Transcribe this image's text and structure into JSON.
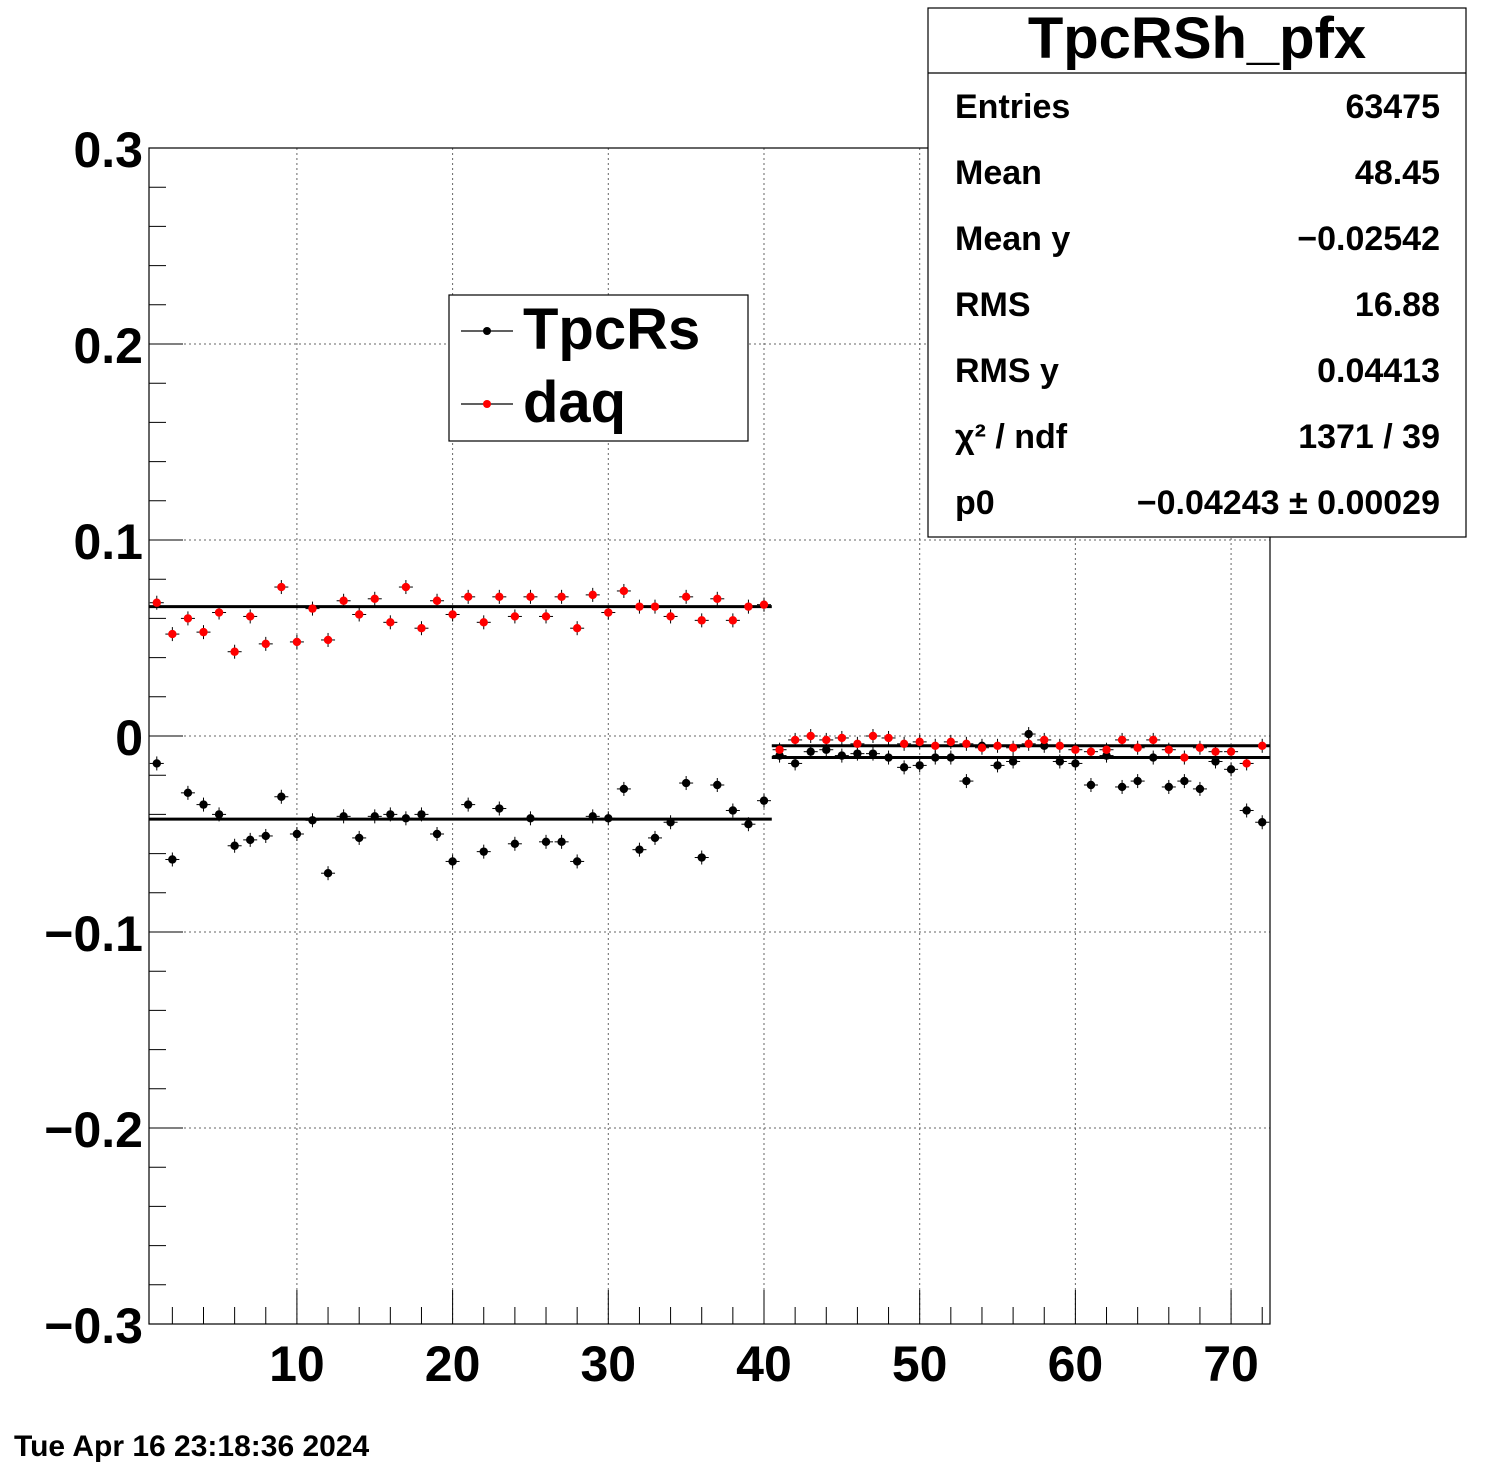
{
  "chart_data": {
    "type": "scatter",
    "title": "TpcRSh_pfx",
    "xlabel": "",
    "ylabel": "",
    "xlim": [
      0.5,
      72.5
    ],
    "ylim": [
      -0.3,
      0.3
    ],
    "grid": true,
    "x_ticks": [
      "10",
      "20",
      "30",
      "40",
      "50",
      "60",
      "70"
    ],
    "y_ticks": [
      "0.3",
      "0.2",
      "0.1",
      "0",
      "−0.1",
      "−0.2",
      "−0.3"
    ],
    "legend": {
      "placement": "top-center",
      "entries": [
        "TpcRs",
        "daq"
      ]
    },
    "series": [
      {
        "name": "TpcRs",
        "color": "#000000",
        "x": [
          1,
          2,
          3,
          4,
          5,
          6,
          7,
          8,
          9,
          10,
          11,
          12,
          13,
          14,
          15,
          16,
          17,
          18,
          19,
          20,
          21,
          22,
          23,
          24,
          25,
          26,
          27,
          28,
          29,
          30,
          31,
          32,
          33,
          34,
          35,
          36,
          37,
          38,
          39,
          40,
          41,
          42,
          43,
          44,
          45,
          46,
          47,
          48,
          49,
          50,
          51,
          52,
          53,
          54,
          55,
          56,
          57,
          58,
          59,
          60,
          61,
          62,
          63,
          64,
          65,
          66,
          67,
          68,
          69,
          70,
          71,
          72
        ],
        "y": [
          -0.014,
          -0.063,
          -0.029,
          -0.035,
          -0.04,
          -0.056,
          -0.053,
          -0.051,
          -0.031,
          -0.05,
          -0.043,
          -0.07,
          -0.041,
          -0.052,
          -0.041,
          -0.04,
          -0.042,
          -0.04,
          -0.05,
          -0.064,
          -0.035,
          -0.059,
          -0.037,
          -0.055,
          -0.042,
          -0.054,
          -0.054,
          -0.064,
          -0.041,
          -0.042,
          -0.027,
          -0.058,
          -0.052,
          -0.044,
          -0.024,
          -0.062,
          -0.025,
          -0.038,
          -0.045,
          -0.033,
          -0.01,
          -0.014,
          -0.008,
          -0.007,
          -0.01,
          -0.009,
          -0.009,
          -0.011,
          -0.016,
          -0.015,
          -0.011,
          -0.011,
          -0.023,
          -0.005,
          -0.015,
          -0.013,
          0.001,
          -0.005,
          -0.013,
          -0.014,
          -0.025,
          -0.01,
          -0.026,
          -0.023,
          -0.011,
          -0.026,
          -0.023,
          -0.027,
          -0.013,
          -0.017,
          -0.038,
          -0.044
        ],
        "fits": [
          {
            "x_range": [
              0.5,
              40.5
            ],
            "p0": -0.04243
          },
          {
            "x_range": [
              40.5,
              72.5
            ],
            "p0": -0.011
          }
        ]
      },
      {
        "name": "daq",
        "color": "#ff0000",
        "x": [
          1,
          2,
          3,
          4,
          5,
          6,
          7,
          8,
          9,
          10,
          11,
          12,
          13,
          14,
          15,
          16,
          17,
          18,
          19,
          20,
          21,
          22,
          23,
          24,
          25,
          26,
          27,
          28,
          29,
          30,
          31,
          32,
          33,
          34,
          35,
          36,
          37,
          38,
          39,
          40,
          41,
          42,
          43,
          44,
          45,
          46,
          47,
          48,
          49,
          50,
          51,
          52,
          53,
          54,
          55,
          56,
          57,
          58,
          59,
          60,
          61,
          62,
          63,
          64,
          65,
          66,
          67,
          68,
          69,
          70,
          71,
          72
        ],
        "y": [
          0.068,
          0.052,
          0.06,
          0.053,
          0.063,
          0.043,
          0.061,
          0.047,
          0.076,
          0.048,
          0.065,
          0.049,
          0.069,
          0.062,
          0.07,
          0.058,
          0.076,
          0.055,
          0.069,
          0.062,
          0.071,
          0.058,
          0.071,
          0.061,
          0.071,
          0.061,
          0.071,
          0.055,
          0.072,
          0.063,
          0.074,
          0.066,
          0.066,
          0.061,
          0.071,
          0.059,
          0.07,
          0.059,
          0.066,
          0.067,
          -0.007,
          -0.002,
          0.0,
          -0.002,
          -0.001,
          -0.004,
          0.0,
          -0.001,
          -0.004,
          -0.003,
          -0.005,
          -0.003,
          -0.004,
          -0.006,
          -0.005,
          -0.006,
          -0.004,
          -0.002,
          -0.005,
          -0.007,
          -0.008,
          -0.007,
          -0.002,
          -0.006,
          -0.002,
          -0.007,
          -0.011,
          -0.006,
          -0.008,
          -0.008,
          -0.014,
          -0.005
        ],
        "fits": [
          {
            "x_range": [
              0.5,
              40.5
            ],
            "p0": 0.066
          },
          {
            "x_range": [
              40.5,
              72.5
            ],
            "p0": -0.005
          }
        ]
      }
    ]
  },
  "stats": {
    "title": "TpcRSh_pfx",
    "rows": [
      {
        "label": "Entries",
        "value": "63475"
      },
      {
        "label": "Mean",
        "value": "48.45"
      },
      {
        "label": "Mean y",
        "value": "−0.02542"
      },
      {
        "label": "RMS",
        "value": "16.88"
      },
      {
        "label": "RMS y",
        "value": "0.04413"
      },
      {
        "label": "χ² / ndf",
        "value": "1371 / 39"
      },
      {
        "label": "p0",
        "value": "−0.04243 ± 0.00029"
      }
    ]
  },
  "timestamp": "Tue Apr 16 23:18:36 2024"
}
